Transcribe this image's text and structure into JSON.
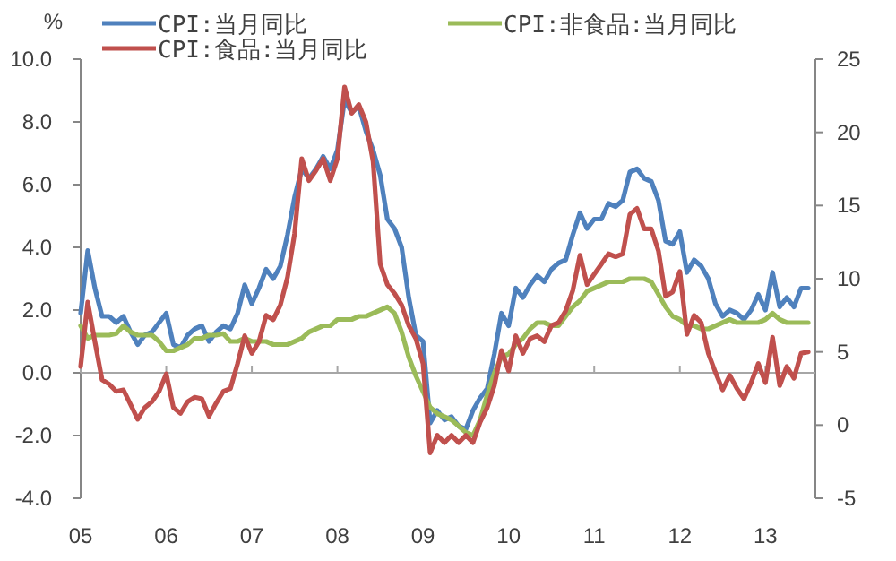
{
  "chart_data": {
    "type": "line",
    "ylabel": "%",
    "x": [
      "2005-01",
      "2005-02",
      "2005-03",
      "2005-04",
      "2005-05",
      "2005-06",
      "2005-07",
      "2005-08",
      "2005-09",
      "2005-10",
      "2005-11",
      "2005-12",
      "2006-01",
      "2006-02",
      "2006-03",
      "2006-04",
      "2006-05",
      "2006-06",
      "2006-07",
      "2006-08",
      "2006-09",
      "2006-10",
      "2006-11",
      "2006-12",
      "2007-01",
      "2007-02",
      "2007-03",
      "2007-04",
      "2007-05",
      "2007-06",
      "2007-07",
      "2007-08",
      "2007-09",
      "2007-10",
      "2007-11",
      "2007-12",
      "2008-01",
      "2008-02",
      "2008-03",
      "2008-04",
      "2008-05",
      "2008-06",
      "2008-07",
      "2008-08",
      "2008-09",
      "2008-10",
      "2008-11",
      "2008-12",
      "2009-01",
      "2009-02",
      "2009-03",
      "2009-04",
      "2009-05",
      "2009-06",
      "2009-07",
      "2009-08",
      "2009-09",
      "2009-10",
      "2009-11",
      "2009-12",
      "2010-01",
      "2010-02",
      "2010-03",
      "2010-04",
      "2010-05",
      "2010-06",
      "2010-07",
      "2010-08",
      "2010-09",
      "2010-10",
      "2010-11",
      "2010-12",
      "2011-01",
      "2011-02",
      "2011-03",
      "2011-04",
      "2011-05",
      "2011-06",
      "2011-07",
      "2011-08",
      "2011-09",
      "2011-10",
      "2011-11",
      "2011-12",
      "2012-01",
      "2012-02",
      "2012-03",
      "2012-04",
      "2012-05",
      "2012-06",
      "2012-07",
      "2012-08",
      "2012-09",
      "2012-10",
      "2012-11",
      "2012-12",
      "2013-01",
      "2013-02",
      "2013-03",
      "2013-04",
      "2013-05",
      "2013-06",
      "2013-07"
    ],
    "series": [
      {
        "name": "CPI:当月同比",
        "color": "#4f81bd",
        "values": [
          1.9,
          3.9,
          2.7,
          1.8,
          1.8,
          1.6,
          1.8,
          1.3,
          0.9,
          1.2,
          1.3,
          1.6,
          1.9,
          0.9,
          0.8,
          1.2,
          1.4,
          1.5,
          1.0,
          1.3,
          1.5,
          1.4,
          1.9,
          2.8,
          2.2,
          2.7,
          3.3,
          3.0,
          3.4,
          4.4,
          5.6,
          6.5,
          6.2,
          6.5,
          6.9,
          6.5,
          7.1,
          8.7,
          8.3,
          8.5,
          7.7,
          7.1,
          6.3,
          4.9,
          4.6,
          4.0,
          2.4,
          1.2,
          1.0,
          -1.6,
          -1.2,
          -1.5,
          -1.4,
          -1.7,
          -1.8,
          -1.2,
          -0.8,
          -0.5,
          0.6,
          1.9,
          1.5,
          2.7,
          2.4,
          2.8,
          3.1,
          2.9,
          3.3,
          3.5,
          3.6,
          4.4,
          5.1,
          4.6,
          4.9,
          4.9,
          5.4,
          5.3,
          5.5,
          6.4,
          6.5,
          6.2,
          6.1,
          5.5,
          4.2,
          4.1,
          4.5,
          3.2,
          3.6,
          3.4,
          3.0,
          2.2,
          1.8,
          2.0,
          1.9,
          1.7,
          2.0,
          2.5,
          2.0,
          3.2,
          2.1,
          2.4,
          2.1,
          2.7,
          2.7
        ]
      },
      {
        "name": "CPI:非食品:当月同比",
        "color": "#9bbb59",
        "values": [
          1.5,
          1.1,
          1.2,
          1.2,
          1.2,
          1.25,
          1.5,
          1.3,
          1.2,
          1.2,
          1.2,
          1.0,
          0.7,
          0.7,
          0.8,
          0.9,
          1.1,
          1.1,
          1.2,
          1.2,
          1.25,
          1.0,
          1.0,
          1.1,
          1.0,
          1.0,
          1.0,
          0.9,
          0.9,
          0.9,
          1.0,
          1.1,
          1.3,
          1.4,
          1.5,
          1.5,
          1.7,
          1.7,
          1.7,
          1.8,
          1.8,
          1.9,
          2.0,
          2.1,
          1.9,
          1.3,
          0.5,
          -0.1,
          -0.6,
          -1.1,
          -1.3,
          -1.4,
          -1.5,
          -1.7,
          -1.9,
          -2.0,
          -1.5,
          -0.7,
          0.0,
          0.5,
          0.6,
          0.9,
          1.1,
          1.4,
          1.6,
          1.6,
          1.5,
          1.5,
          1.8,
          2.1,
          2.3,
          2.6,
          2.7,
          2.8,
          2.9,
          2.9,
          2.9,
          3.0,
          3.0,
          3.0,
          2.9,
          2.5,
          2.1,
          1.8,
          1.7,
          1.5,
          1.5,
          1.4,
          1.4,
          1.5,
          1.6,
          1.7,
          1.6,
          1.6,
          1.6,
          1.6,
          1.7,
          1.9,
          1.7,
          1.6,
          1.6,
          1.6,
          1.6
        ]
      },
      {
        "name": "CPI:食品:当月同比",
        "color": "#c0504d",
        "axis": "y2",
        "values": [
          4.0,
          8.4,
          5.7,
          3.1,
          2.8,
          2.3,
          2.4,
          1.4,
          0.4,
          1.2,
          1.6,
          2.3,
          3.5,
          1.2,
          0.8,
          1.6,
          1.9,
          1.8,
          0.6,
          1.5,
          2.3,
          2.5,
          4.2,
          6.1,
          4.9,
          5.7,
          7.5,
          7.2,
          8.2,
          10.1,
          13.1,
          18.2,
          16.7,
          17.4,
          18.2,
          16.7,
          18.2,
          23.1,
          21.3,
          21.9,
          20.7,
          18.0,
          11.0,
          9.6,
          9.0,
          8.2,
          6.8,
          5.9,
          4.2,
          -1.9,
          -0.7,
          -1.2,
          -0.7,
          -1.2,
          -0.7,
          -1.2,
          0.2,
          1.2,
          2.7,
          5.1,
          3.7,
          6.1,
          4.9,
          5.9,
          6.1,
          5.7,
          6.8,
          7.0,
          7.8,
          9.2,
          11.6,
          9.6,
          10.3,
          11.0,
          11.7,
          11.5,
          11.7,
          14.4,
          14.8,
          13.4,
          13.4,
          11.9,
          8.8,
          9.1,
          10.5,
          6.2,
          7.5,
          7.0,
          4.9,
          3.6,
          2.4,
          3.4,
          2.5,
          1.8,
          2.9,
          4.2,
          2.9,
          6.0,
          2.7,
          4.0,
          3.2,
          4.9,
          5.0
        ]
      }
    ],
    "xlim": [
      "2005-01",
      "2013-08"
    ],
    "xticks": [
      {
        "value": "2005-01",
        "label": "05"
      },
      {
        "value": "2006-01",
        "label": "06"
      },
      {
        "value": "2007-01",
        "label": "07"
      },
      {
        "value": "2008-01",
        "label": "08"
      },
      {
        "value": "2009-01",
        "label": "09"
      },
      {
        "value": "2010-01",
        "label": "10"
      },
      {
        "value": "2011-01",
        "label": "11"
      },
      {
        "value": "2012-01",
        "label": "12"
      },
      {
        "value": "2013-01",
        "label": "13"
      }
    ],
    "ylim": [
      -4,
      10
    ],
    "yticks": [
      {
        "value": -4,
        "label": "-4.0"
      },
      {
        "value": -2,
        "label": "-2.0"
      },
      {
        "value": 0,
        "label": "0.0"
      },
      {
        "value": 2,
        "label": "2.0"
      },
      {
        "value": 4,
        "label": "4.0"
      },
      {
        "value": 6,
        "label": "6.0"
      },
      {
        "value": 8,
        "label": "8.0"
      },
      {
        "value": 10,
        "label": "10.0"
      }
    ],
    "y2lim": [
      -5,
      25
    ],
    "y2ticks": [
      -5,
      0,
      5,
      10,
      15,
      20,
      25
    ],
    "legend": "top"
  }
}
